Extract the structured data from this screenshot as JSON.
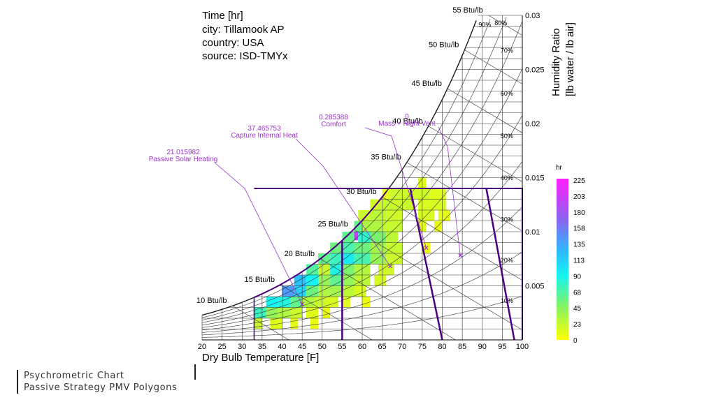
{
  "header": {
    "line1": "Time [hr]",
    "line2": "city: Tillamook AP",
    "line3": "country: USA",
    "line4": "source: ISD-TMYx"
  },
  "footer": {
    "title": "Psychrometric Chart",
    "subtitle": "Passive Strategy PMV Polygons"
  },
  "colors": {
    "grid": "#333333",
    "polygon": "#4b0082",
    "annotation": "#9932cc",
    "saturation": "#1a1a1a"
  },
  "chart_data": {
    "type": "heatmap",
    "title": "Time [hr]",
    "xlabel": "Dry Bulb Temperature [F]",
    "ylabel_line1": "Humidity Ratio",
    "ylabel_line2": "[lb water / lb air]",
    "xlim": [
      20,
      100
    ],
    "ylim": [
      0,
      0.03
    ],
    "x_ticks": [
      20,
      25,
      30,
      35,
      40,
      45,
      50,
      55,
      60,
      65,
      70,
      75,
      80,
      85,
      90,
      95,
      100
    ],
    "y_ticks": [
      0.005,
      0.01,
      0.015,
      0.02,
      0.025,
      0.03
    ],
    "rh_lines": [
      10,
      20,
      30,
      40,
      50,
      60,
      70,
      80,
      90,
      100
    ],
    "rh_labels": [
      "10%",
      "20%",
      "30%",
      "40%",
      "50%",
      "60%",
      "70%",
      "80%",
      "90%"
    ],
    "enthalpy_lines": [
      10,
      15,
      20,
      25,
      30,
      35,
      40,
      45,
      50,
      55
    ],
    "enthalpy_labels": [
      "10 Btu/lb",
      "15 Btu/lb",
      "20 Btu/lb",
      "25 Btu/lb",
      "30 Btu/lb",
      "35 Btu/lb",
      "40 Btu/lb",
      "45 Btu/lb",
      "50 Btu/lb",
      "55 Btu/lb"
    ],
    "legend": {
      "title": "hr",
      "ticks": [
        "225",
        "203",
        "180",
        "158",
        "135",
        "113",
        "90",
        "68",
        "45",
        "23",
        "0"
      ],
      "min": 0,
      "max": 225
    },
    "strategies": [
      {
        "name": "Passive Solar Heating",
        "value": "21.015982",
        "polygon": [
          [
            33,
            0
          ],
          [
            55,
            0
          ],
          [
            55,
            0.0095
          ],
          [
            33,
            0.0032
          ]
        ],
        "marker": [
          45,
          0.0033
        ]
      },
      {
        "name": "Capture Internal Heat",
        "value": "37.465753",
        "polygon": [
          [
            55,
            0
          ],
          [
            66,
            0
          ],
          [
            66,
            0.014
          ],
          [
            55,
            0.0095
          ]
        ],
        "marker": [
          67,
          0.0068
        ]
      },
      {
        "name": "Comfort",
        "value": "0.285388",
        "polygon": [
          [
            66,
            0.014
          ],
          [
            72,
            0.014
          ],
          [
            80,
            0
          ],
          [
            76,
            0
          ]
        ],
        "marker": [
          76,
          0.0085
        ]
      },
      {
        "name": "Mass + Night Vent",
        "value": "0",
        "polygon": [
          [
            91,
            0.014
          ],
          [
            97,
            0.014
          ],
          [
            98,
            0
          ],
          [
            90,
            0
          ]
        ],
        "marker": [
          84.5,
          0.0078
        ]
      }
    ],
    "zone_box": {
      "x": [
        33,
        100
      ],
      "y": [
        0,
        0.014
      ]
    },
    "hour_cells": [
      {
        "x": [
          65,
          67
        ],
        "y": [
          0.013,
          0.014
        ],
        "hours": 10
      },
      {
        "x": [
          67,
          72
        ],
        "y": [
          0.013,
          0.014
        ],
        "hours": 20
      },
      {
        "x": [
          72,
          77
        ],
        "y": [
          0.013,
          0.014
        ],
        "hours": 18
      },
      {
        "x": [
          77,
          81
        ],
        "y": [
          0.013,
          0.014
        ],
        "hours": 12
      },
      {
        "x": [
          74,
          76
        ],
        "y": [
          0.014,
          0.015
        ],
        "hours": 12
      },
      {
        "x": [
          62,
          65
        ],
        "y": [
          0.012,
          0.013
        ],
        "hours": 18
      },
      {
        "x": [
          65,
          68
        ],
        "y": [
          0.012,
          0.013
        ],
        "hours": 22
      },
      {
        "x": [
          68,
          73
        ],
        "y": [
          0.012,
          0.013
        ],
        "hours": 20
      },
      {
        "x": [
          74,
          81
        ],
        "y": [
          0.012,
          0.013
        ],
        "hours": 14
      },
      {
        "x": [
          59,
          62
        ],
        "y": [
          0.011,
          0.012
        ],
        "hours": 20
      },
      {
        "x": [
          62,
          66
        ],
        "y": [
          0.011,
          0.012
        ],
        "hours": 25
      },
      {
        "x": [
          66,
          70
        ],
        "y": [
          0.011,
          0.012
        ],
        "hours": 18
      },
      {
        "x": [
          74,
          78
        ],
        "y": [
          0.011,
          0.012
        ],
        "hours": 15
      },
      {
        "x": [
          79,
          82
        ],
        "y": [
          0.011,
          0.012
        ],
        "hours": 10
      },
      {
        "x": [
          58,
          60
        ],
        "y": [
          0.01,
          0.011
        ],
        "hours": 60
      },
      {
        "x": [
          60,
          65
        ],
        "y": [
          0.01,
          0.011
        ],
        "hours": 30
      },
      {
        "x": [
          65,
          70
        ],
        "y": [
          0.01,
          0.011
        ],
        "hours": 22
      },
      {
        "x": [
          74,
          76
        ],
        "y": [
          0.01,
          0.011
        ],
        "hours": 12
      },
      {
        "x": [
          78,
          80
        ],
        "y": [
          0.01,
          0.011
        ],
        "hours": 8
      },
      {
        "x": [
          55,
          58
        ],
        "y": [
          0.009,
          0.01
        ],
        "hours": 60
      },
      {
        "x": [
          58,
          59
        ],
        "y": [
          0.0092,
          0.01
        ],
        "hours": 200
      },
      {
        "x": [
          59,
          62
        ],
        "y": [
          0.009,
          0.01
        ],
        "hours": 80
      },
      {
        "x": [
          62,
          66
        ],
        "y": [
          0.009,
          0.01
        ],
        "hours": 50
      },
      {
        "x": [
          66,
          69
        ],
        "y": [
          0.009,
          0.01
        ],
        "hours": 25
      },
      {
        "x": [
          52,
          55
        ],
        "y": [
          0.008,
          0.009
        ],
        "hours": 55
      },
      {
        "x": [
          55,
          58
        ],
        "y": [
          0.008,
          0.009
        ],
        "hours": 70
      },
      {
        "x": [
          58,
          62
        ],
        "y": [
          0.008,
          0.009
        ],
        "hours": 55
      },
      {
        "x": [
          62,
          66
        ],
        "y": [
          0.008,
          0.009
        ],
        "hours": 35
      },
      {
        "x": [
          66,
          70
        ],
        "y": [
          0.008,
          0.009
        ],
        "hours": 22
      },
      {
        "x": [
          75,
          77
        ],
        "y": [
          0.008,
          0.009
        ],
        "hours": 8
      },
      {
        "x": [
          49,
          52
        ],
        "y": [
          0.007,
          0.008
        ],
        "hours": 60
      },
      {
        "x": [
          52,
          55
        ],
        "y": [
          0.007,
          0.008
        ],
        "hours": 75
      },
      {
        "x": [
          55,
          58
        ],
        "y": [
          0.007,
          0.008
        ],
        "hours": 95
      },
      {
        "x": [
          58,
          62
        ],
        "y": [
          0.007,
          0.008
        ],
        "hours": 70
      },
      {
        "x": [
          62,
          66
        ],
        "y": [
          0.007,
          0.008
        ],
        "hours": 40
      },
      {
        "x": [
          66,
          70
        ],
        "y": [
          0.007,
          0.008
        ],
        "hours": 20
      },
      {
        "x": [
          46,
          49
        ],
        "y": [
          0.006,
          0.007
        ],
        "hours": 65
      },
      {
        "x": [
          49,
          52
        ],
        "y": [
          0.006,
          0.007
        ],
        "hours": 20
      },
      {
        "x": [
          52,
          55
        ],
        "y": [
          0.006,
          0.007
        ],
        "hours": 85
      },
      {
        "x": [
          55,
          58
        ],
        "y": [
          0.006,
          0.007
        ],
        "hours": 50
      },
      {
        "x": [
          58,
          62
        ],
        "y": [
          0.006,
          0.007
        ],
        "hours": 30
      },
      {
        "x": [
          64,
          68
        ],
        "y": [
          0.006,
          0.007
        ],
        "hours": 18
      },
      {
        "x": [
          43,
          46
        ],
        "y": [
          0.005,
          0.006
        ],
        "hours": 120
      },
      {
        "x": [
          46,
          49
        ],
        "y": [
          0.005,
          0.006
        ],
        "hours": 90
      },
      {
        "x": [
          49,
          52
        ],
        "y": [
          0.005,
          0.006
        ],
        "hours": 40
      },
      {
        "x": [
          52,
          55
        ],
        "y": [
          0.005,
          0.006
        ],
        "hours": 60
      },
      {
        "x": [
          55,
          58
        ],
        "y": [
          0.005,
          0.006
        ],
        "hours": 40
      },
      {
        "x": [
          58,
          62
        ],
        "y": [
          0.005,
          0.006
        ],
        "hours": 25
      },
      {
        "x": [
          63,
          66
        ],
        "y": [
          0.005,
          0.006
        ],
        "hours": 15
      },
      {
        "x": [
          40,
          43
        ],
        "y": [
          0.004,
          0.005
        ],
        "hours": 140
      },
      {
        "x": [
          43,
          46
        ],
        "y": [
          0.004,
          0.005
        ],
        "hours": 110
      },
      {
        "x": [
          46,
          49
        ],
        "y": [
          0.004,
          0.005
        ],
        "hours": 55
      },
      {
        "x": [
          49,
          52
        ],
        "y": [
          0.004,
          0.005
        ],
        "hours": 30
      },
      {
        "x": [
          52,
          55
        ],
        "y": [
          0.004,
          0.005
        ],
        "hours": 35
      },
      {
        "x": [
          55,
          58
        ],
        "y": [
          0.004,
          0.005
        ],
        "hours": 25
      },
      {
        "x": [
          58,
          61
        ],
        "y": [
          0.004,
          0.005
        ],
        "hours": 15
      },
      {
        "x": [
          36,
          39
        ],
        "y": [
          0.003,
          0.004
        ],
        "hours": 90
      },
      {
        "x": [
          39,
          42
        ],
        "y": [
          0.003,
          0.004
        ],
        "hours": 85
      },
      {
        "x": [
          42,
          45
        ],
        "y": [
          0.003,
          0.004
        ],
        "hours": 60
      },
      {
        "x": [
          45,
          48
        ],
        "y": [
          0.003,
          0.004
        ],
        "hours": 30
      },
      {
        "x": [
          48,
          51
        ],
        "y": [
          0.003,
          0.004
        ],
        "hours": 20
      },
      {
        "x": [
          51,
          54
        ],
        "y": [
          0.003,
          0.004
        ],
        "hours": 15
      },
      {
        "x": [
          55,
          57
        ],
        "y": [
          0.003,
          0.004
        ],
        "hours": 12
      },
      {
        "x": [
          60,
          62
        ],
        "y": [
          0.003,
          0.004
        ],
        "hours": 8
      },
      {
        "x": [
          33,
          36
        ],
        "y": [
          0.002,
          0.003
        ],
        "hours": 75
      },
      {
        "x": [
          36,
          39
        ],
        "y": [
          0.002,
          0.003
        ],
        "hours": 40
      },
      {
        "x": [
          39,
          42
        ],
        "y": [
          0.002,
          0.003
        ],
        "hours": 30
      },
      {
        "x": [
          42,
          45
        ],
        "y": [
          0.002,
          0.003
        ],
        "hours": 20
      },
      {
        "x": [
          46,
          49
        ],
        "y": [
          0.002,
          0.003
        ],
        "hours": 12
      },
      {
        "x": [
          50,
          52
        ],
        "y": [
          0.002,
          0.003
        ],
        "hours": 8
      },
      {
        "x": [
          33,
          35
        ],
        "y": [
          0.001,
          0.002
        ],
        "hours": 20
      },
      {
        "x": [
          37,
          40
        ],
        "y": [
          0.001,
          0.002
        ],
        "hours": 12
      },
      {
        "x": [
          42,
          44
        ],
        "y": [
          0.001,
          0.002
        ],
        "hours": 10
      },
      {
        "x": [
          47,
          49
        ],
        "y": [
          0.001,
          0.002
        ],
        "hours": 8
      }
    ]
  }
}
